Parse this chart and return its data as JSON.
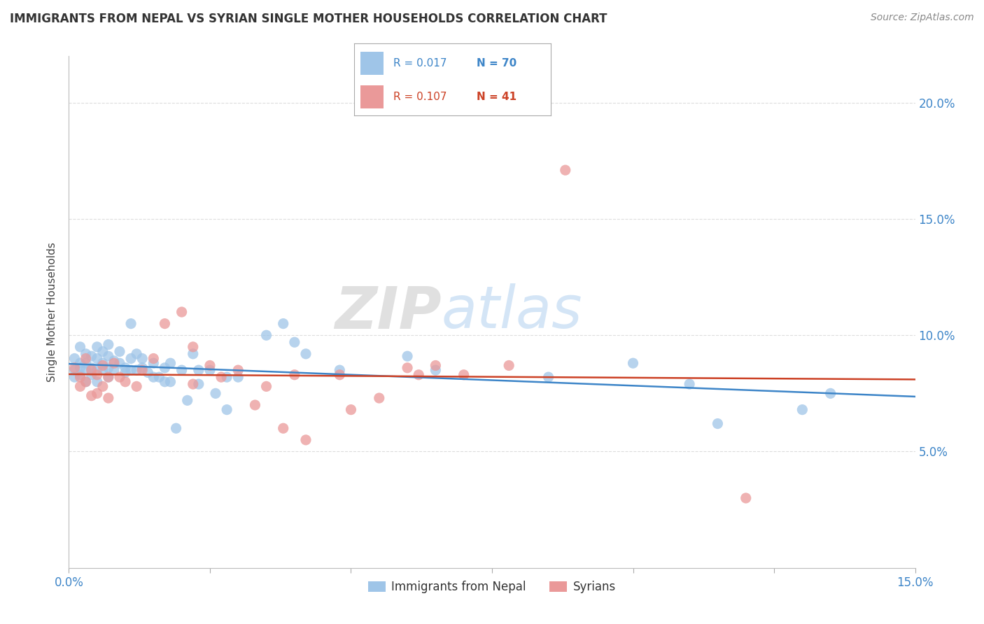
{
  "title": "IMMIGRANTS FROM NEPAL VS SYRIAN SINGLE MOTHER HOUSEHOLDS CORRELATION CHART",
  "source": "Source: ZipAtlas.com",
  "ylabel": "Single Mother Households",
  "xlim": [
    0.0,
    0.15
  ],
  "ylim": [
    0.0,
    0.22
  ],
  "yticks": [
    0.05,
    0.1,
    0.15,
    0.2
  ],
  "ytick_labels": [
    "5.0%",
    "10.0%",
    "15.0%",
    "20.0%"
  ],
  "xticks": [
    0.0,
    0.025,
    0.05,
    0.075,
    0.1,
    0.125,
    0.15
  ],
  "legend_blue_label": "Immigrants from Nepal",
  "legend_pink_label": "Syrians",
  "R_blue": 0.017,
  "N_blue": 70,
  "R_pink": 0.107,
  "N_pink": 41,
  "blue_color": "#9FC5E8",
  "pink_color": "#EA9999",
  "blue_line_color": "#3D85C8",
  "pink_line_color": "#CC4125",
  "watermark_zip": "ZIP",
  "watermark_atlas": "atlas",
  "background_color": "#FFFFFF",
  "grid_color": "#DDDDDD",
  "nepal_points": [
    [
      0.001,
      0.09
    ],
    [
      0.001,
      0.085
    ],
    [
      0.001,
      0.082
    ],
    [
      0.002,
      0.095
    ],
    [
      0.002,
      0.088
    ],
    [
      0.002,
      0.086
    ],
    [
      0.002,
      0.083
    ],
    [
      0.003,
      0.092
    ],
    [
      0.003,
      0.088
    ],
    [
      0.003,
      0.085
    ],
    [
      0.003,
      0.08
    ],
    [
      0.004,
      0.091
    ],
    [
      0.004,
      0.086
    ],
    [
      0.004,
      0.083
    ],
    [
      0.005,
      0.095
    ],
    [
      0.005,
      0.09
    ],
    [
      0.005,
      0.085
    ],
    [
      0.005,
      0.08
    ],
    [
      0.006,
      0.093
    ],
    [
      0.006,
      0.088
    ],
    [
      0.006,
      0.085
    ],
    [
      0.007,
      0.096
    ],
    [
      0.007,
      0.091
    ],
    [
      0.007,
      0.086
    ],
    [
      0.007,
      0.082
    ],
    [
      0.008,
      0.089
    ],
    [
      0.008,
      0.085
    ],
    [
      0.009,
      0.093
    ],
    [
      0.009,
      0.088
    ],
    [
      0.01,
      0.086
    ],
    [
      0.01,
      0.084
    ],
    [
      0.011,
      0.105
    ],
    [
      0.011,
      0.09
    ],
    [
      0.011,
      0.085
    ],
    [
      0.012,
      0.092
    ],
    [
      0.012,
      0.085
    ],
    [
      0.013,
      0.09
    ],
    [
      0.013,
      0.086
    ],
    [
      0.014,
      0.084
    ],
    [
      0.015,
      0.088
    ],
    [
      0.015,
      0.082
    ],
    [
      0.016,
      0.082
    ],
    [
      0.017,
      0.086
    ],
    [
      0.017,
      0.08
    ],
    [
      0.018,
      0.088
    ],
    [
      0.018,
      0.08
    ],
    [
      0.019,
      0.06
    ],
    [
      0.02,
      0.085
    ],
    [
      0.021,
      0.072
    ],
    [
      0.022,
      0.092
    ],
    [
      0.023,
      0.085
    ],
    [
      0.023,
      0.079
    ],
    [
      0.025,
      0.085
    ],
    [
      0.026,
      0.075
    ],
    [
      0.028,
      0.082
    ],
    [
      0.028,
      0.068
    ],
    [
      0.03,
      0.082
    ],
    [
      0.035,
      0.1
    ],
    [
      0.038,
      0.105
    ],
    [
      0.04,
      0.097
    ],
    [
      0.042,
      0.092
    ],
    [
      0.048,
      0.085
    ],
    [
      0.06,
      0.091
    ],
    [
      0.065,
      0.085
    ],
    [
      0.085,
      0.082
    ],
    [
      0.1,
      0.088
    ],
    [
      0.11,
      0.079
    ],
    [
      0.115,
      0.062
    ],
    [
      0.13,
      0.068
    ],
    [
      0.135,
      0.075
    ]
  ],
  "syrian_points": [
    [
      0.001,
      0.086
    ],
    [
      0.002,
      0.082
    ],
    [
      0.002,
      0.078
    ],
    [
      0.003,
      0.09
    ],
    [
      0.003,
      0.08
    ],
    [
      0.004,
      0.085
    ],
    [
      0.004,
      0.074
    ],
    [
      0.005,
      0.083
    ],
    [
      0.005,
      0.075
    ],
    [
      0.006,
      0.087
    ],
    [
      0.006,
      0.078
    ],
    [
      0.007,
      0.082
    ],
    [
      0.007,
      0.073
    ],
    [
      0.008,
      0.088
    ],
    [
      0.009,
      0.082
    ],
    [
      0.01,
      0.08
    ],
    [
      0.012,
      0.078
    ],
    [
      0.013,
      0.085
    ],
    [
      0.015,
      0.09
    ],
    [
      0.017,
      0.105
    ],
    [
      0.02,
      0.11
    ],
    [
      0.022,
      0.095
    ],
    [
      0.022,
      0.079
    ],
    [
      0.025,
      0.087
    ],
    [
      0.027,
      0.082
    ],
    [
      0.03,
      0.085
    ],
    [
      0.033,
      0.07
    ],
    [
      0.035,
      0.078
    ],
    [
      0.038,
      0.06
    ],
    [
      0.04,
      0.083
    ],
    [
      0.042,
      0.055
    ],
    [
      0.048,
      0.083
    ],
    [
      0.05,
      0.068
    ],
    [
      0.055,
      0.073
    ],
    [
      0.06,
      0.086
    ],
    [
      0.062,
      0.083
    ],
    [
      0.065,
      0.087
    ],
    [
      0.07,
      0.083
    ],
    [
      0.078,
      0.087
    ],
    [
      0.088,
      0.171
    ],
    [
      0.12,
      0.03
    ]
  ]
}
